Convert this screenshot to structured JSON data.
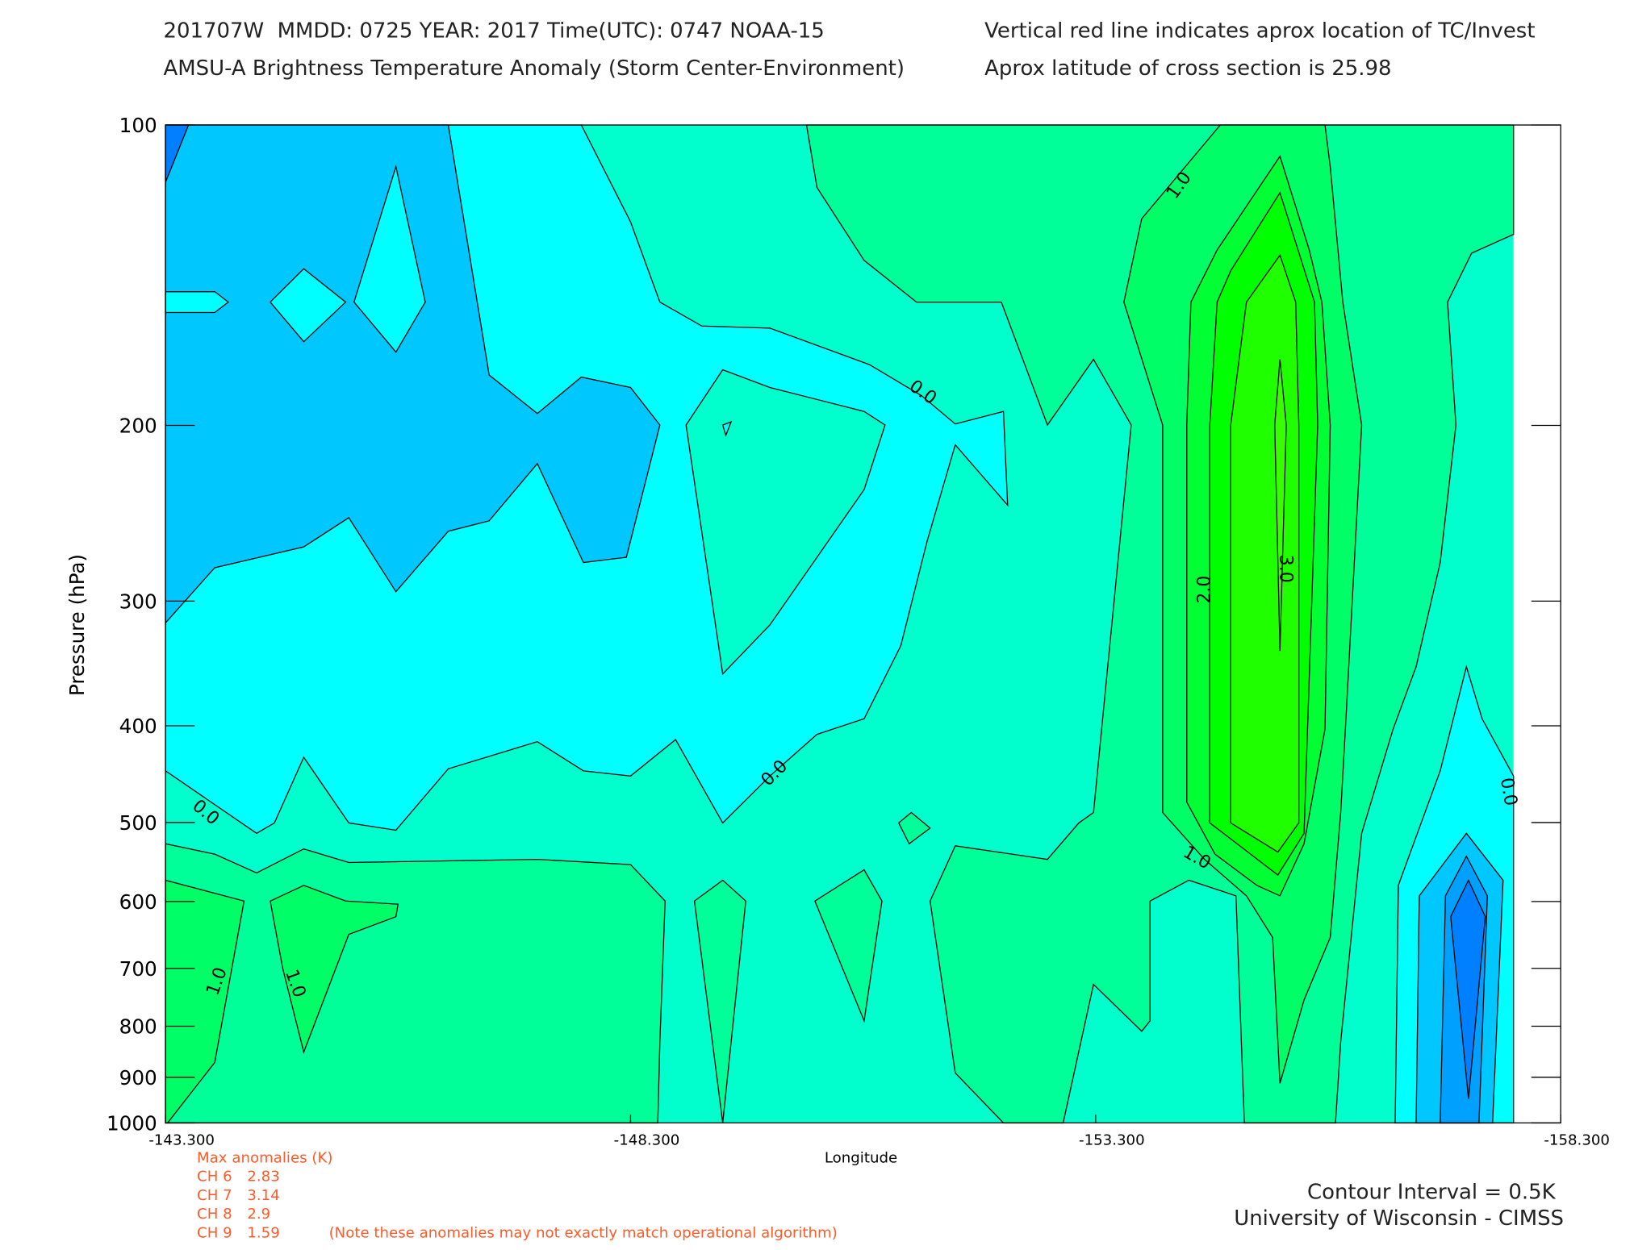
{
  "chart_data": {
    "type": "contour",
    "title": "201707W  MMDD: 0725 YEAR: 2017 Time(UTC): 0747 NOAA-15",
    "subtitle": "AMSU-A Brightness Temperature Anomaly (Storm Center-Environment)",
    "note_right_1": "Vertical red line indicates aprox location of TC/Invest",
    "note_right_2": "Aprox latitude of cross section is 25.98",
    "x_label": "Longitude",
    "y_label": "Pressure (hPa)",
    "log_y": true,
    "xlim": [
      -143.3,
      -158.3
    ],
    "xticks": [
      {
        "value": -143.3,
        "label": "-143.300"
      },
      {
        "value": -148.3,
        "label": "-148.300"
      },
      {
        "value": -153.3,
        "label": "-153.300"
      },
      {
        "value": -158.3,
        "label": "-158.300"
      }
    ],
    "ylim": [
      100,
      1000
    ],
    "yticks": [
      100,
      200,
      300,
      400,
      500,
      600,
      700,
      800,
      900,
      1000
    ],
    "contour_labels": [
      "1.0",
      "0.0",
      "0.0",
      "0.0",
      "1.0",
      "1.0",
      "2.0",
      "3.0",
      "1.0",
      "0.0"
    ],
    "contour_interval": "Contour Interval = 0.5K",
    "credit": "University of Wisconsin - CIMSS",
    "max_anomalies": {
      "title": "Max anomalies (K)",
      "rows": [
        {
          "channel": "CH 6",
          "value": 2.83
        },
        {
          "channel": "CH 7",
          "value": 3.14
        },
        {
          "channel": "CH 8",
          "value": 2.9
        },
        {
          "channel": "CH 9",
          "value": 1.59
        }
      ],
      "note": "(Note these anomalies may not exactly match operational algorithm)"
    }
  }
}
